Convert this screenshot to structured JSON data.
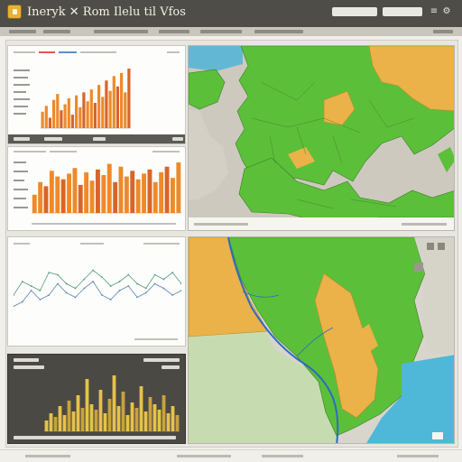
{
  "window": {
    "title": "Ineryk ✕ Rom Ilelu til Vfos"
  },
  "charts": {
    "bars_top": [
      22,
      30,
      14,
      38,
      46,
      24,
      32,
      40,
      18,
      44,
      28,
      48,
      36,
      52,
      34,
      58,
      42,
      64,
      50,
      70,
      56,
      74,
      48,
      80
    ],
    "bars_mid": [
      26,
      44,
      38,
      60,
      52,
      48,
      56,
      64,
      40,
      58,
      46,
      62,
      54,
      70,
      44,
      66,
      52,
      60,
      48,
      56,
      62,
      44,
      58,
      66,
      50,
      72
    ],
    "line_a": [
      40,
      52,
      48,
      44,
      60,
      58,
      50,
      46,
      54,
      62,
      56,
      48,
      52,
      58,
      50,
      46,
      58,
      54,
      60,
      50
    ],
    "line_b": [
      30,
      34,
      44,
      36,
      40,
      50,
      42,
      38,
      46,
      52,
      40,
      36,
      44,
      48,
      38,
      42,
      50,
      46,
      40,
      44
    ],
    "bars_dark": [
      12,
      20,
      16,
      28,
      18,
      34,
      22,
      40,
      26,
      58,
      30,
      24,
      46,
      20,
      36,
      62,
      28,
      44,
      18,
      32,
      26,
      50,
      22,
      38,
      30,
      24,
      40,
      20,
      28,
      18
    ]
  },
  "colors": {
    "bar_orange": "#ee8a2a",
    "bar_dark_orange": "#d8652a",
    "bar_yellow": "#e6c24a",
    "line_green": "#4d9b78",
    "line_blue": "#5d83b8",
    "map_green": "#5cbf3a",
    "map_yellow": "#eab248",
    "map_water": "#4fb7d8",
    "map_light": "#c9d9b8"
  }
}
